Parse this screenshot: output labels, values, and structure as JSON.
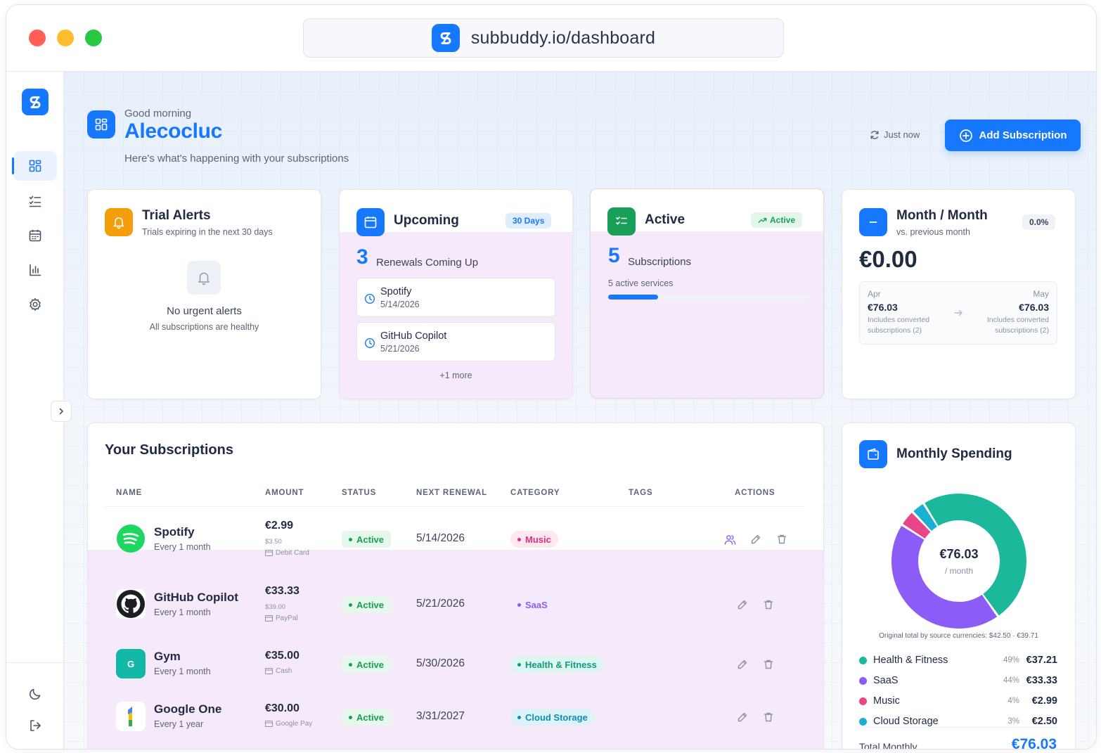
{
  "browser": {
    "url": "subbuddy.io/dashboard"
  },
  "header": {
    "greeting": "Good morning",
    "username": "Alecocluc",
    "subtitle": "Here's what's happening with your subscriptions",
    "refresh_label": "Just now",
    "add_button": "Add Subscription"
  },
  "trial_alerts": {
    "title": "Trial Alerts",
    "subtitle": "Trials expiring in the next 30 days",
    "empty_title": "No urgent alerts",
    "empty_sub": "All subscriptions are healthy"
  },
  "upcoming": {
    "title": "Upcoming",
    "badge": "30 Days",
    "count": "3",
    "count_label": "Renewals Coming Up",
    "items": [
      {
        "name": "Spotify",
        "date": "5/14/2026"
      },
      {
        "name": "GitHub Copilot",
        "date": "5/21/2026"
      }
    ],
    "more": "+1 more"
  },
  "active": {
    "title": "Active",
    "badge": "Active",
    "count": "5",
    "count_label": "Subscriptions",
    "services": "5 active services",
    "progress": 0.25
  },
  "month": {
    "title": "Month / Month",
    "subtitle": "vs. previous month",
    "change": "0.0%",
    "amount": "€0.00",
    "prev": {
      "month": "Apr",
      "value": "€76.03",
      "note_line1": "Includes converted",
      "note_line2": "subscriptions (2)"
    },
    "curr": {
      "month": "May",
      "value": "€76.03",
      "note_line1": "Includes converted",
      "note_line2": "subscriptions (2)"
    }
  },
  "subscriptions": {
    "title": "Your Subscriptions",
    "columns": [
      "NAME",
      "AMOUNT",
      "STATUS",
      "NEXT RENEWAL",
      "CATEGORY",
      "TAGS",
      "ACTIONS"
    ],
    "rows": [
      {
        "name": "Spotify",
        "cycle": "Every 1 month",
        "amount": "€2.99",
        "original": "$3.50",
        "payment": "Debit Card",
        "status": "Active",
        "renewal": "5/14/2026",
        "category": "Music"
      },
      {
        "name": "GitHub Copilot",
        "cycle": "Every 1 month",
        "amount": "€33.33",
        "original": "$39.00",
        "payment": "PayPal",
        "status": "Active",
        "renewal": "5/21/2026",
        "category": "SaaS"
      },
      {
        "name": "Gym",
        "cycle": "Every 1 month",
        "amount": "€35.00",
        "original": "",
        "payment": "Cash",
        "status": "Active",
        "renewal": "5/30/2026",
        "category": "Health & Fitness"
      },
      {
        "name": "Google One",
        "cycle": "Every 1 year",
        "amount": "€30.00",
        "original": "",
        "payment": "Google Pay",
        "status": "Active",
        "renewal": "3/31/2027",
        "category": "Cloud Storage"
      }
    ],
    "gym_initial": "G"
  },
  "spending": {
    "title": "Monthly Spending",
    "center_value": "€76.03",
    "center_label": "/ month",
    "note": "Original total by source currencies: $42.50 · €39.71",
    "total_label": "Total Monthly",
    "total_value": "€76.03"
  },
  "chart_data": {
    "type": "pie",
    "title": "Monthly Spending",
    "categories": [
      "Health & Fitness",
      "SaaS",
      "Music",
      "Cloud Storage"
    ],
    "values": [
      37.21,
      33.33,
      2.99,
      2.5
    ],
    "percent_labels": [
      "49%",
      "44%",
      "4%",
      "3%"
    ],
    "value_labels": [
      "€37.21",
      "€33.33",
      "€2.99",
      "€2.50"
    ],
    "colors": [
      "#1cb89b",
      "#8b5cf6",
      "#e94589",
      "#1ab0d4"
    ]
  }
}
